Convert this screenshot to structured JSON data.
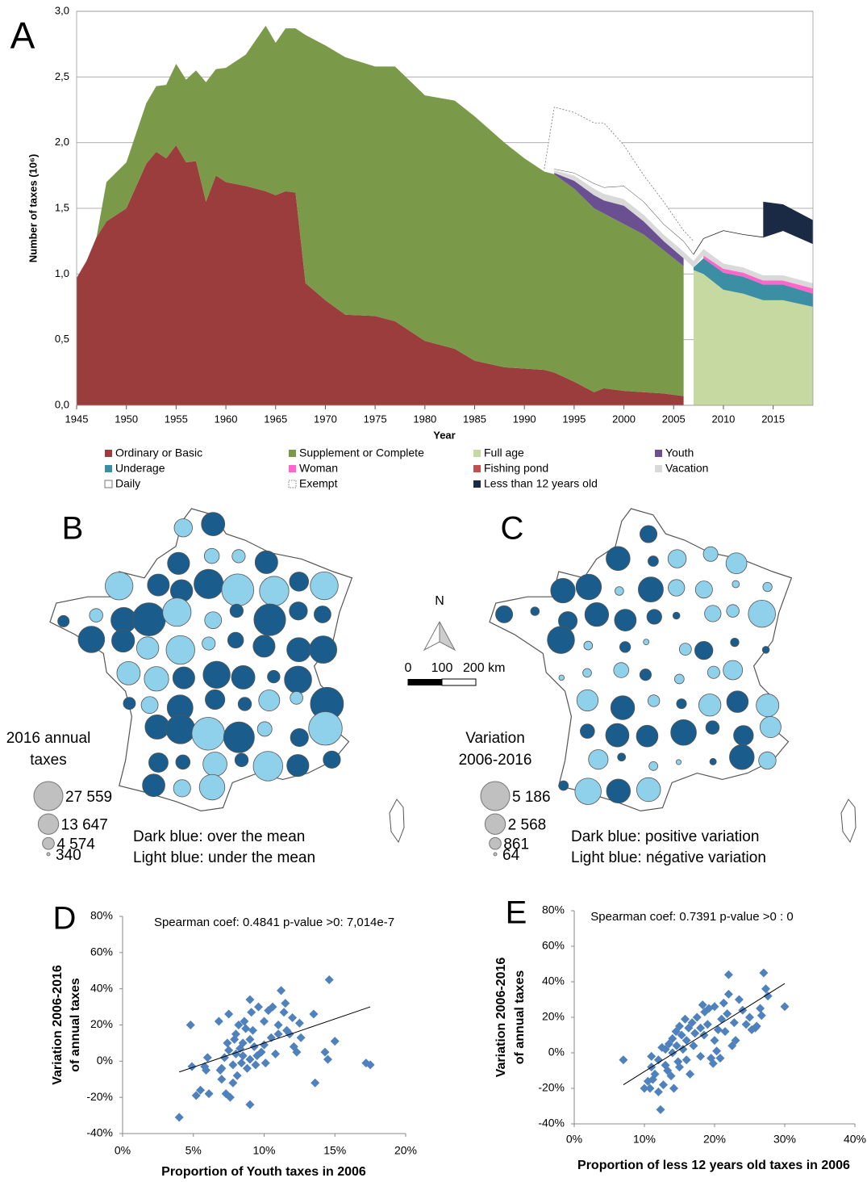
{
  "chart_data": [
    {
      "type": "area",
      "panel_label": "A",
      "stacked": true,
      "grid": true,
      "xlabel": "Year",
      "ylabel": "Number of taxes (10⁶)",
      "x": [
        1945,
        1946,
        1947,
        1948,
        1950,
        1952,
        1953,
        1954,
        1955,
        1956,
        1957,
        1958,
        1959,
        1960,
        1962,
        1964,
        1965,
        1966,
        1967,
        1968,
        1970,
        1972,
        1975,
        1977,
        1980,
        1983,
        1985,
        1988,
        1990,
        1992,
        1993,
        1995,
        1997,
        1998,
        2000,
        2002,
        2004,
        2006,
        2007,
        2008,
        2010,
        2012,
        2014,
        2016,
        2019
      ],
      "xlim": [
        1945,
        2019
      ],
      "xticks": [
        1945,
        1950,
        1955,
        1960,
        1965,
        1970,
        1975,
        1980,
        1985,
        1990,
        1995,
        2000,
        2005,
        2010,
        2015
      ],
      "ylim": [
        0,
        3
      ],
      "yticks": [
        {
          "value": 0,
          "label": "0,0"
        },
        {
          "value": 0.5,
          "label": "0,5"
        },
        {
          "value": 1,
          "label": "1,0"
        },
        {
          "value": 1.5,
          "label": "1,5"
        },
        {
          "value": 2,
          "label": "2,0"
        },
        {
          "value": 2.5,
          "label": "2,5"
        },
        {
          "value": 3,
          "label": "3,0"
        }
      ],
      "series": [
        {
          "name": "Ordinary or Basic",
          "color": "#9b3d3d",
          "values": [
            0.97,
            1.1,
            1.28,
            1.4,
            1.5,
            1.84,
            1.93,
            1.88,
            1.98,
            1.85,
            1.86,
            1.55,
            1.75,
            1.7,
            1.67,
            1.63,
            1.6,
            1.63,
            1.62,
            0.93,
            0.8,
            0.69,
            0.68,
            0.64,
            0.49,
            0.43,
            0.34,
            0.29,
            0.28,
            0.27,
            0.25,
            0.18,
            0.1,
            0.13,
            0.11,
            0.1,
            0.09,
            0.07,
            null,
            null,
            null,
            null,
            null,
            null,
            null
          ]
        },
        {
          "name": "Supplement or Complete",
          "color": "#7a9a4a",
          "values": [
            null,
            null,
            0,
            0.3,
            0.35,
            0.46,
            0.5,
            0.56,
            0.62,
            0.63,
            0.69,
            0.91,
            0.81,
            0.87,
            1.0,
            1.26,
            1.16,
            1.24,
            1.25,
            1.89,
            1.94,
            1.96,
            1.9,
            1.94,
            1.87,
            1.89,
            1.86,
            1.71,
            1.6,
            1.51,
            1.51,
            1.47,
            1.4,
            1.33,
            1.27,
            1.2,
            1.09,
            0.99,
            null,
            null,
            null,
            null,
            null,
            null,
            null
          ]
        },
        {
          "name": "Full age",
          "color": "#c5d9a0",
          "values": [
            null,
            null,
            null,
            null,
            null,
            null,
            null,
            null,
            null,
            null,
            null,
            null,
            null,
            null,
            null,
            null,
            null,
            null,
            null,
            null,
            null,
            null,
            null,
            null,
            null,
            null,
            null,
            null,
            null,
            null,
            null,
            null,
            null,
            null,
            null,
            null,
            null,
            null,
            1.03,
            1.0,
            0.88,
            0.85,
            0.8,
            0.8,
            0.75
          ]
        },
        {
          "name": "Youth",
          "color": "#6a5090",
          "values": [
            null,
            null,
            null,
            null,
            null,
            null,
            null,
            null,
            null,
            null,
            null,
            null,
            null,
            null,
            null,
            null,
            null,
            null,
            null,
            null,
            null,
            null,
            null,
            null,
            null,
            null,
            null,
            null,
            null,
            null,
            0.01,
            0.06,
            0.1,
            0.1,
            0.14,
            0.1,
            0.07,
            0.06,
            null,
            null,
            null,
            null,
            null,
            null,
            null
          ]
        },
        {
          "name": "Underage",
          "color": "#3c8ea5",
          "values": [
            null,
            null,
            null,
            null,
            null,
            null,
            null,
            null,
            null,
            null,
            null,
            null,
            null,
            null,
            null,
            null,
            null,
            null,
            null,
            null,
            null,
            null,
            null,
            null,
            null,
            null,
            null,
            null,
            null,
            null,
            null,
            null,
            null,
            null,
            null,
            null,
            null,
            null,
            0.02,
            0.12,
            0.13,
            0.13,
            0.12,
            0.12,
            0.1
          ]
        },
        {
          "name": "Woman",
          "color": "#ff66cc",
          "values": [
            null,
            null,
            null,
            null,
            null,
            null,
            null,
            null,
            null,
            null,
            null,
            null,
            null,
            null,
            null,
            null,
            null,
            null,
            null,
            null,
            null,
            null,
            null,
            null,
            null,
            null,
            null,
            null,
            null,
            null,
            null,
            null,
            null,
            null,
            null,
            null,
            null,
            null,
            null,
            0.02,
            0.03,
            0.03,
            0.03,
            0.03,
            0.04
          ]
        },
        {
          "name": "Fishing pond",
          "color": "#c0504d",
          "values": [
            null,
            null,
            null,
            null,
            null,
            null,
            null,
            null,
            null,
            null,
            null,
            null,
            null,
            null,
            null,
            null,
            null,
            null,
            null,
            null,
            null,
            null,
            null,
            null,
            null,
            null,
            null,
            null,
            null,
            null,
            null,
            null,
            null,
            null,
            null,
            null,
            null,
            null,
            null,
            null,
            null,
            null,
            null,
            null,
            null
          ]
        },
        {
          "name": "Vacation",
          "color": "#d9d9d9",
          "values": [
            null,
            null,
            null,
            null,
            null,
            null,
            null,
            null,
            null,
            null,
            null,
            null,
            null,
            null,
            null,
            null,
            null,
            null,
            null,
            null,
            null,
            null,
            null,
            null,
            null,
            null,
            null,
            null,
            null,
            null,
            0.02,
            0.04,
            0.05,
            0.05,
            0.05,
            0.05,
            0.05,
            0.05,
            0.05,
            0.05,
            0.04,
            0.04,
            0.04,
            0.04,
            0.04
          ]
        },
        {
          "name": "Daily",
          "color": "#ffffff",
          "outline": "solid",
          "values": [
            null,
            null,
            null,
            null,
            null,
            null,
            null,
            null,
            null,
            null,
            null,
            null,
            null,
            null,
            null,
            null,
            null,
            null,
            null,
            null,
            null,
            null,
            null,
            null,
            null,
            null,
            null,
            null,
            null,
            null,
            0.01,
            0.02,
            0.04,
            0.05,
            0.1,
            0.1,
            0.08,
            0.08,
            0.05,
            0.08,
            0.25,
            0.25,
            0.29,
            0.34,
            0.3
          ]
        },
        {
          "name": "Exempt",
          "color": "#ffffff",
          "outline": "dotted",
          "values": [
            null,
            null,
            null,
            null,
            null,
            null,
            null,
            null,
            null,
            null,
            null,
            null,
            null,
            null,
            null,
            null,
            null,
            null,
            null,
            null,
            null,
            null,
            null,
            null,
            null,
            null,
            null,
            null,
            null,
            0.02,
            0.47,
            0.46,
            0.46,
            0.49,
            0.31,
            0.2,
            0.17,
            0.08,
            0.1,
            null,
            null,
            null,
            null,
            null,
            null
          ]
        },
        {
          "name": "Less than 12 years old",
          "color": "#1b2a44",
          "values": [
            null,
            null,
            null,
            null,
            null,
            null,
            null,
            null,
            null,
            null,
            null,
            null,
            null,
            null,
            null,
            null,
            null,
            null,
            null,
            null,
            null,
            null,
            null,
            null,
            null,
            null,
            null,
            null,
            null,
            null,
            null,
            null,
            null,
            null,
            null,
            null,
            null,
            null,
            null,
            null,
            null,
            null,
            0.27,
            0.2,
            0.18
          ]
        }
      ]
    },
    {
      "type": "scatter",
      "panel_label": "D",
      "color": "#4f81bd",
      "annotation": "Spearman coef: 0.4841 p-value >0: 7,014e-7",
      "xlabel": "Proportion of Youth taxes in 2006",
      "ylabel": [
        "Variation 2006-2016",
        "of annual taxes"
      ],
      "x": [
        4,
        4.8,
        4.9,
        5.2,
        5.5,
        5.8,
        5.9,
        6,
        6.1,
        6.8,
        6.9,
        7,
        7,
        7.2,
        7.3,
        7.4,
        7.5,
        7.5,
        7.6,
        7.8,
        7.8,
        7.9,
        8,
        8,
        8.1,
        8.2,
        8.3,
        8.4,
        8.5,
        8.5,
        8.6,
        8.7,
        8.8,
        9,
        9,
        9,
        9,
        9.1,
        9.2,
        9.3,
        9.4,
        9.5,
        9.6,
        9.8,
        10,
        10,
        10.1,
        10.3,
        10.5,
        10.6,
        10.8,
        11,
        11,
        11.2,
        11.4,
        11.5,
        11.6,
        11.8,
        12,
        12.1,
        12.3,
        12.5,
        12.6,
        13.5,
        13.6,
        14.3,
        14.5,
        14.6,
        15,
        17.2,
        17.5
      ],
      "values": [
        -31,
        20,
        -3,
        -19,
        -16,
        -3,
        -5,
        2,
        -18,
        22,
        -5,
        -10,
        -4,
        2,
        -18,
        10,
        26,
        6,
        -20,
        -12,
        -2,
        12,
        15,
        4,
        -8,
        20,
        7,
        -1,
        10,
        3,
        22,
        18,
        -4,
        -24,
        34,
        12,
        1,
        27,
        17,
        8,
        -2,
        3,
        30,
        5,
        22,
        9,
        -1,
        28,
        13,
        30,
        4,
        20,
        15,
        39,
        27,
        32,
        17,
        15,
        24,
        8,
        5,
        21,
        13,
        26,
        -12,
        5,
        1,
        45,
        11,
        -1,
        -2
      ],
      "trendline": {
        "x": [
          4,
          17.5
        ],
        "values": [
          -6,
          30
        ]
      },
      "xlim": [
        0,
        20
      ],
      "xticks": [
        {
          "value": 0,
          "label": "0%"
        },
        {
          "value": 5,
          "label": "5%"
        },
        {
          "value": 10,
          "label": "10%"
        },
        {
          "value": 15,
          "label": "15%"
        },
        {
          "value": 20,
          "label": "20%"
        }
      ],
      "ylim": [
        -40,
        80
      ],
      "yticks": [
        {
          "value": -40,
          "label": "-40%"
        },
        {
          "value": -20,
          "label": "-20%"
        },
        {
          "value": 0,
          "label": "0%"
        },
        {
          "value": 20,
          "label": "20%"
        },
        {
          "value": 40,
          "label": "40%"
        },
        {
          "value": 60,
          "label": "60%"
        },
        {
          "value": 80,
          "label": "80%"
        }
      ]
    },
    {
      "type": "scatter",
      "panel_label": "E",
      "color": "#4f81bd",
      "annotation": "Spearman coef: 0.7391 p-value >0 : 0",
      "xlabel": "Proportion of less 12 years old taxes in 2006",
      "ylabel": [
        "Variation 2006-2016",
        "of annual taxes"
      ],
      "x": [
        7,
        10,
        10.5,
        10.8,
        11,
        11,
        11.2,
        11.5,
        12,
        12,
        12.3,
        12.5,
        12.7,
        13,
        13,
        13.3,
        13.5,
        13.8,
        14,
        14,
        14.2,
        14.5,
        14.6,
        14.8,
        15,
        15,
        15.3,
        15.5,
        15.8,
        16,
        16,
        16.3,
        16.5,
        16.8,
        17,
        17.2,
        17.5,
        18,
        18,
        18.3,
        18.5,
        18.6,
        19,
        19.2,
        19.5,
        19.8,
        20,
        20,
        20.3,
        20.5,
        20.8,
        21,
        21.3,
        21.5,
        21.8,
        22,
        22,
        22.5,
        22.8,
        23,
        23.5,
        24,
        24.5,
        25,
        25.3,
        25.8,
        26,
        26.5,
        26.7,
        27,
        27.3,
        27.6,
        30
      ],
      "values": [
        -4,
        -20,
        -16,
        -20,
        -8,
        -2,
        -15,
        -12,
        -4,
        -22,
        -32,
        3,
        -18,
        -7,
        2,
        -10,
        5,
        -13,
        8,
        0,
        -20,
        12,
        4,
        -5,
        15,
        -8,
        10,
        2,
        19,
        -4,
        7,
        14,
        -12,
        17,
        4,
        11,
        20,
        14,
        -2,
        27,
        10,
        23,
        16,
        25,
        -3,
        -6,
        7,
        26,
        1,
        13,
        -3,
        19,
        28,
        12,
        22,
        33,
        44,
        4,
        17,
        7,
        30,
        24,
        16,
        20,
        13,
        14,
        15,
        25,
        21,
        45,
        36,
        32,
        26
      ],
      "trendline": {
        "x": [
          7,
          30
        ],
        "values": [
          -18,
          39
        ]
      },
      "xlim": [
        0,
        40
      ],
      "xticks": [
        {
          "value": 0,
          "label": "0%"
        },
        {
          "value": 10,
          "label": "10%"
        },
        {
          "value": 20,
          "label": "20%"
        },
        {
          "value": 30,
          "label": "30%"
        },
        {
          "value": 40,
          "label": "40%"
        }
      ],
      "ylim": [
        -40,
        80
      ],
      "yticks": [
        {
          "value": -40,
          "label": "-40%"
        },
        {
          "value": -20,
          "label": "-20%"
        },
        {
          "value": 0,
          "label": "0%"
        },
        {
          "value": 20,
          "label": "20%"
        },
        {
          "value": 40,
          "label": "40%"
        },
        {
          "value": 60,
          "label": "60%"
        },
        {
          "value": 80,
          "label": "80%"
        }
      ]
    }
  ],
  "maps": [
    {
      "panel_label": "B",
      "legend_title": [
        "2016 annual",
        "taxes"
      ],
      "sizes": [
        {
          "value": 27559,
          "label": "27 559"
        },
        {
          "value": 13647,
          "label": "13 647"
        },
        {
          "value": 4574,
          "label": "4 574"
        },
        340
      ],
      "notes": [
        "Dark blue: over the mean",
        "Light blue: under the mean"
      ],
      "dark_color": "#1a5d8c",
      "light_color": "#8fd0ea",
      "legend_color": "#c0c0c0"
    },
    {
      "panel_label": "C",
      "legend_title": [
        "Variation",
        "2006-2016"
      ],
      "sizes": [
        {
          "value": 5186,
          "label": "5 186"
        },
        {
          "value": 2568,
          "label": "2 568"
        },
        861,
        64
      ],
      "notes": [
        "Dark blue: positive variation",
        "Light blue: négative variation"
      ],
      "dark_color": "#1a5d8c",
      "light_color": "#8fd0ea",
      "legend_color": "#c0c0c0"
    }
  ],
  "map_scale": {
    "north": "N",
    "ticks": [
      0,
      100,
      {
        "value": 200,
        "label": "200 km"
      }
    ]
  }
}
